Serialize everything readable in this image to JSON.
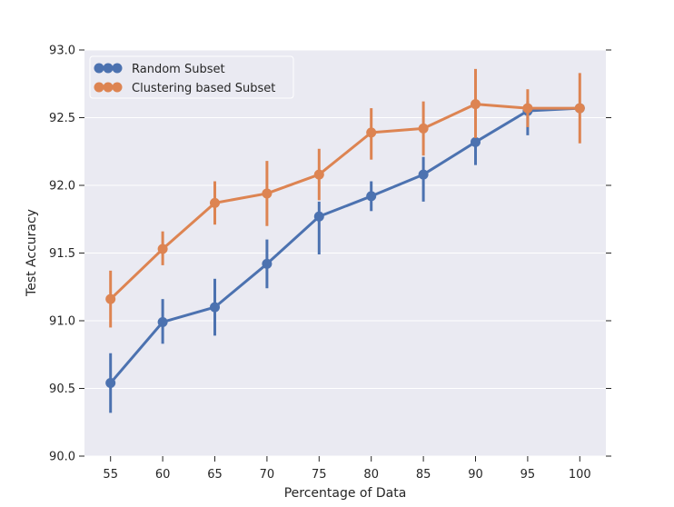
{
  "chart_data": {
    "type": "line",
    "title": "",
    "xlabel": "Percentage of Data",
    "ylabel": "Test Accuracy",
    "categories": [
      "55",
      "60",
      "65",
      "70",
      "75",
      "80",
      "85",
      "90",
      "95",
      "100"
    ],
    "ylim": [
      90.0,
      93.0
    ],
    "yticks": [
      "90.0",
      "90.5",
      "91.0",
      "91.5",
      "92.0",
      "92.5",
      "93.0"
    ],
    "grid": true,
    "legend_position": "top-left",
    "series": [
      {
        "name": "Random Subset",
        "color": "#4c72b0",
        "values": [
          90.54,
          90.99,
          91.1,
          91.42,
          91.77,
          91.92,
          92.08,
          92.32,
          92.55,
          92.57
        ],
        "lower": [
          90.32,
          90.83,
          90.89,
          91.24,
          91.49,
          91.81,
          91.88,
          92.15,
          92.37,
          92.57
        ],
        "upper": [
          90.76,
          91.16,
          91.31,
          91.6,
          91.88,
          92.03,
          92.21,
          92.45,
          92.62,
          92.57
        ]
      },
      {
        "name": "Clustering based Subset",
        "color": "#dd8452",
        "values": [
          91.16,
          91.53,
          91.87,
          91.94,
          92.08,
          92.39,
          92.42,
          92.6,
          92.57,
          92.57
        ],
        "lower": [
          90.95,
          91.41,
          91.71,
          91.7,
          91.89,
          92.19,
          92.22,
          92.35,
          92.43,
          92.31
        ],
        "upper": [
          91.37,
          91.66,
          92.03,
          92.18,
          92.27,
          92.57,
          92.62,
          92.86,
          92.71,
          92.83
        ]
      }
    ]
  }
}
